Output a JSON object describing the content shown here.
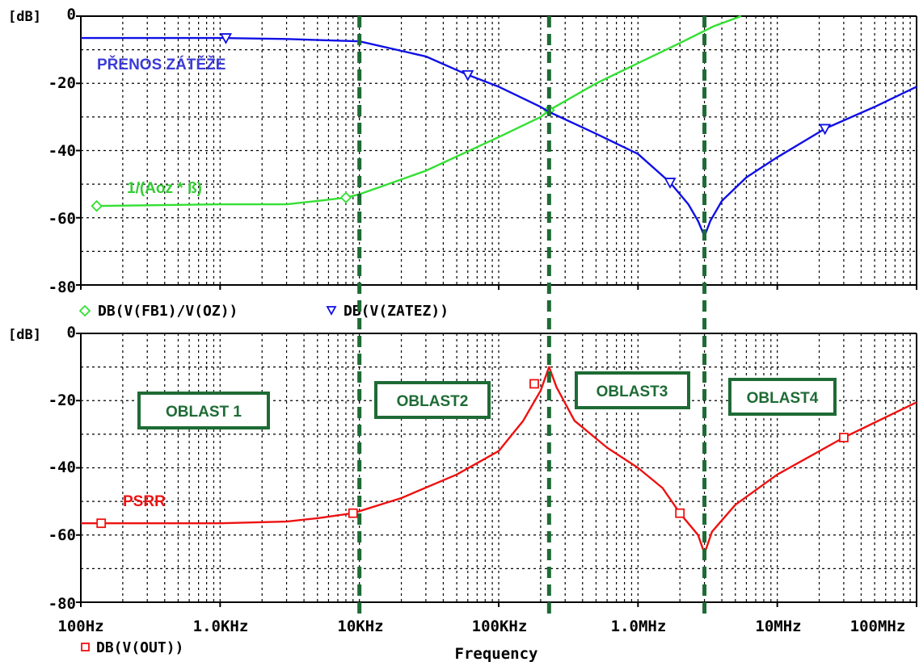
{
  "colors": {
    "blue": "#1010e6",
    "green": "#33e033",
    "red": "#ee1111",
    "region": "#1e6b35",
    "grid": "#000000"
  },
  "chart_data": [
    {
      "type": "line",
      "x_scale": "log",
      "x_ticks": [
        "100Hz",
        "1.0KHz",
        "10KHz",
        "100KHz",
        "1.0MHz",
        "10MHz",
        "100MHz"
      ],
      "xlim": [
        100,
        100000000
      ],
      "ylim": [
        -80,
        0
      ],
      "y_ticks": [
        "0",
        "-20",
        "-40",
        "-60",
        "-80"
      ],
      "ylabel": "[dB]",
      "grid": true,
      "legend_position": "below",
      "series": [
        {
          "name": "DB(V(FB1)/V(OZ))",
          "color": "green",
          "marker": "diamond",
          "points": [
            [
              130,
              -56.5
            ],
            [
              1000,
              -56
            ],
            [
              3000,
              -56
            ],
            [
              5000,
              -55
            ],
            [
              8000,
              -54
            ],
            [
              10000,
              -53
            ],
            [
              30000,
              -46
            ],
            [
              100000,
              -36
            ],
            [
              200000,
              -30
            ],
            [
              230000,
              -28
            ],
            [
              500000,
              -20
            ],
            [
              1000000,
              -14
            ],
            [
              2000000,
              -8
            ],
            [
              3500000,
              -3
            ],
            [
              5500000,
              0
            ]
          ],
          "marker_points": [
            [
              130,
              -56.5
            ],
            [
              8000,
              -54
            ],
            [
              230000,
              -28
            ]
          ]
        },
        {
          "name": "DB(V(ZATEZ))",
          "color": "blue",
          "marker": "triangle-down",
          "points": [
            [
              100,
              -6.5
            ],
            [
              1000,
              -6.5
            ],
            [
              3000,
              -6.8
            ],
            [
              10000,
              -7.5
            ],
            [
              30000,
              -12
            ],
            [
              60000,
              -17.5
            ],
            [
              100000,
              -21
            ],
            [
              200000,
              -27
            ],
            [
              230000,
              -28.5
            ],
            [
              500000,
              -35
            ],
            [
              1000000,
              -41
            ],
            [
              1700000,
              -49.5
            ],
            [
              2300000,
              -56
            ],
            [
              2700000,
              -61
            ],
            [
              3000000,
              -65.5
            ],
            [
              3300000,
              -61
            ],
            [
              4000000,
              -55
            ],
            [
              6000000,
              -48
            ],
            [
              10000000,
              -42
            ],
            [
              22000000,
              -33.5
            ],
            [
              50000000,
              -27
            ],
            [
              100000000,
              -21
            ]
          ],
          "marker_points": [
            [
              1100,
              -6.5
            ],
            [
              60000,
              -17.5
            ],
            [
              1700000,
              -49.5
            ],
            [
              22000000,
              -33.5
            ]
          ]
        }
      ],
      "annotations": [
        {
          "text": "PŘENOS ZÁTĚŽE",
          "color": "blue"
        },
        {
          "text": "1/(Aoz * ß)",
          "color": "green"
        }
      ]
    },
    {
      "type": "line",
      "x_scale": "log",
      "x_ticks": [
        "100Hz",
        "1.0KHz",
        "10KHz",
        "100KHz",
        "1.0MHz",
        "10MHz",
        "100MHz"
      ],
      "xlim": [
        100,
        100000000
      ],
      "ylim": [
        -80,
        0
      ],
      "y_ticks": [
        "0",
        "-20",
        "-40",
        "-60",
        "-80"
      ],
      "ylabel": "[dB]",
      "xlabel": "Frequency",
      "grid": true,
      "legend_position": "below",
      "series": [
        {
          "name": "DB(V(OUT))",
          "color": "red",
          "marker": "square",
          "points": [
            [
              100,
              -56.5
            ],
            [
              1000,
              -56.5
            ],
            [
              3000,
              -56
            ],
            [
              5000,
              -55
            ],
            [
              9000,
              -53.5
            ],
            [
              20000,
              -49
            ],
            [
              50000,
              -42
            ],
            [
              100000,
              -35
            ],
            [
              150000,
              -26
            ],
            [
              200000,
              -17
            ],
            [
              230000,
              -10
            ],
            [
              260000,
              -16
            ],
            [
              350000,
              -26
            ],
            [
              600000,
              -34
            ],
            [
              1000000,
              -40
            ],
            [
              1500000,
              -46
            ],
            [
              2000000,
              -53.5
            ],
            [
              2700000,
              -60
            ],
            [
              3000000,
              -65.5
            ],
            [
              3400000,
              -59
            ],
            [
              5000000,
              -51
            ],
            [
              10000000,
              -42
            ],
            [
              30000000,
              -31
            ],
            [
              100000000,
              -20.5
            ]
          ],
          "marker_points": [
            [
              140,
              -56.5
            ],
            [
              9000,
              -53.5
            ],
            [
              180000,
              -15
            ],
            [
              2000000,
              -53.5
            ],
            [
              30000000,
              -31
            ]
          ]
        }
      ],
      "annotations": [
        {
          "text": "PSRR",
          "color": "red"
        }
      ]
    }
  ],
  "regions": {
    "boundaries_hz": [
      10000,
      230000,
      3000000
    ],
    "labels": [
      "OBLAST 1",
      "OBLAST2",
      "OBLAST3",
      "OBLAST4"
    ]
  }
}
